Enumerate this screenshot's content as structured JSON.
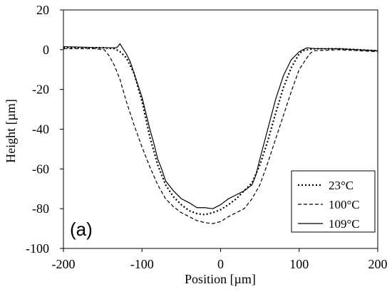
{
  "chart_data": {
    "type": "line",
    "panel_label": "(a)",
    "xlabel": "Position [µm]",
    "ylabel": "Height [µm]",
    "xlim": [
      -200,
      200
    ],
    "ylim": [
      -100,
      20
    ],
    "xticks": [
      "-200",
      "-100",
      "0",
      "100",
      "200"
    ],
    "yticks": [
      "20",
      "0",
      "-20",
      "-40",
      "-60",
      "-80",
      "-100"
    ],
    "grid": false,
    "legend_position": "bottom-right",
    "series": [
      {
        "name": "23°C",
        "style": "dotted",
        "x": [
          -200,
          -150,
          -135,
          -128,
          -120,
          -110,
          -100,
          -90,
          -80,
          -70,
          -60,
          -50,
          -40,
          -30,
          -20,
          -10,
          0,
          10,
          20,
          30,
          40,
          50,
          60,
          70,
          80,
          90,
          100,
          105,
          110,
          120,
          150,
          200
        ],
        "y": [
          1,
          1,
          0.5,
          -1,
          -4,
          -12,
          -26,
          -44,
          -58,
          -68,
          -74,
          -78,
          -81,
          -82.5,
          -83,
          -82,
          -80.5,
          -78,
          -75,
          -71,
          -67,
          -58,
          -46,
          -32,
          -19,
          -9,
          -2,
          -0.5,
          0,
          0.5,
          0.5,
          -0.5
        ]
      },
      {
        "name": "100°C",
        "style": "dashed",
        "x": [
          -200,
          -160,
          -148,
          -142,
          -135,
          -128,
          -120,
          -110,
          -100,
          -90,
          -80,
          -70,
          -60,
          -50,
          -40,
          -30,
          -20,
          -10,
          0,
          10,
          20,
          30,
          40,
          50,
          60,
          70,
          80,
          90,
          100,
          110,
          115,
          120,
          150,
          200
        ],
        "y": [
          0.5,
          0.5,
          0,
          -3,
          -8,
          -15,
          -26,
          -38,
          -49,
          -59,
          -68,
          -75,
          -79,
          -82,
          -84,
          -86,
          -87,
          -87.5,
          -86.5,
          -84,
          -82,
          -80,
          -75,
          -68,
          -57,
          -45,
          -33,
          -21,
          -10,
          -4,
          -1.5,
          -0.5,
          0,
          -1
        ]
      },
      {
        "name": "109°C",
        "style": "solid",
        "x": [
          -200,
          -150,
          -132,
          -128,
          -125,
          -120,
          -115,
          -110,
          -100,
          -90,
          -85,
          -80,
          -75,
          -70,
          -60,
          -50,
          -40,
          -30,
          -20,
          -10,
          0,
          10,
          20,
          30,
          40,
          45,
          50,
          60,
          70,
          80,
          90,
          100,
          105,
          110,
          120,
          150,
          200
        ],
        "y": [
          1.5,
          1,
          1,
          3,
          1,
          -2,
          -6,
          -12,
          -24,
          -40,
          -47,
          -55,
          -60,
          -66,
          -71,
          -75,
          -77,
          -79.5,
          -79.5,
          -80,
          -78,
          -75,
          -73,
          -71,
          -68,
          -63,
          -55,
          -40,
          -25,
          -13,
          -5,
          -1,
          0,
          1,
          0.5,
          0.5,
          -0.5
        ]
      }
    ]
  }
}
